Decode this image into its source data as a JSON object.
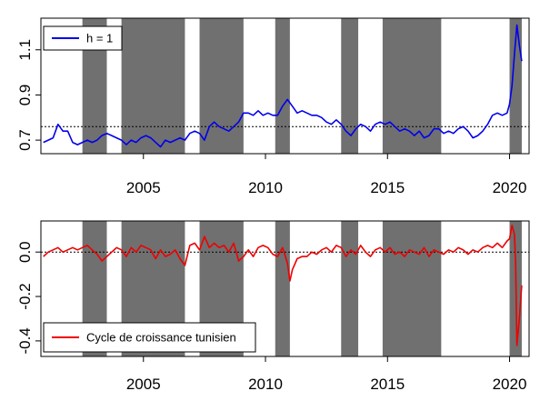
{
  "chart_data": [
    {
      "type": "line",
      "xlim": [
        2000.8,
        2020.8
      ],
      "ylim": [
        0.64,
        1.24
      ],
      "x_ticks": [
        {
          "value": 2005,
          "label": "2005"
        },
        {
          "value": 2010,
          "label": "2010"
        },
        {
          "value": 2015,
          "label": "2015"
        },
        {
          "value": 2020,
          "label": "2020"
        }
      ],
      "y_ticks": [
        {
          "value": 0.7,
          "label": "0.7"
        },
        {
          "value": 0.9,
          "label": "0.9"
        },
        {
          "value": 1.1,
          "label": "1.1"
        }
      ],
      "recession_bands": [
        [
          2002.5,
          2003.5
        ],
        [
          2004.1,
          2006.7
        ],
        [
          2007.3,
          2009.1
        ],
        [
          2010.4,
          2011.0
        ],
        [
          2013.1,
          2013.8
        ],
        [
          2014.8,
          2017.2
        ],
        [
          2020.0,
          2020.5
        ]
      ],
      "reference_line": {
        "y": 0.76,
        "style": "dotted"
      },
      "series": [
        {
          "name": "h = 1",
          "color": "#0000ee",
          "points": [
            [
              2000.9,
              0.69
            ],
            [
              2001.1,
              0.7
            ],
            [
              2001.3,
              0.71
            ],
            [
              2001.5,
              0.77
            ],
            [
              2001.7,
              0.74
            ],
            [
              2001.9,
              0.74
            ],
            [
              2002.1,
              0.69
            ],
            [
              2002.3,
              0.68
            ],
            [
              2002.5,
              0.69
            ],
            [
              2002.7,
              0.7
            ],
            [
              2002.9,
              0.69
            ],
            [
              2003.1,
              0.7
            ],
            [
              2003.3,
              0.72
            ],
            [
              2003.5,
              0.73
            ],
            [
              2003.7,
              0.72
            ],
            [
              2003.9,
              0.71
            ],
            [
              2004.1,
              0.7
            ],
            [
              2004.3,
              0.68
            ],
            [
              2004.5,
              0.7
            ],
            [
              2004.7,
              0.69
            ],
            [
              2004.9,
              0.71
            ],
            [
              2005.1,
              0.72
            ],
            [
              2005.3,
              0.71
            ],
            [
              2005.5,
              0.69
            ],
            [
              2005.7,
              0.67
            ],
            [
              2005.9,
              0.7
            ],
            [
              2006.1,
              0.69
            ],
            [
              2006.3,
              0.7
            ],
            [
              2006.5,
              0.71
            ],
            [
              2006.7,
              0.7
            ],
            [
              2006.9,
              0.73
            ],
            [
              2007.1,
              0.74
            ],
            [
              2007.3,
              0.73
            ],
            [
              2007.5,
              0.7
            ],
            [
              2007.7,
              0.76
            ],
            [
              2007.9,
              0.78
            ],
            [
              2008.1,
              0.76
            ],
            [
              2008.3,
              0.75
            ],
            [
              2008.5,
              0.74
            ],
            [
              2008.7,
              0.76
            ],
            [
              2008.9,
              0.78
            ],
            [
              2009.1,
              0.82
            ],
            [
              2009.3,
              0.82
            ],
            [
              2009.5,
              0.81
            ],
            [
              2009.7,
              0.83
            ],
            [
              2009.9,
              0.81
            ],
            [
              2010.1,
              0.82
            ],
            [
              2010.3,
              0.81
            ],
            [
              2010.5,
              0.81
            ],
            [
              2010.7,
              0.85
            ],
            [
              2010.9,
              0.88
            ],
            [
              2011.1,
              0.85
            ],
            [
              2011.3,
              0.82
            ],
            [
              2011.5,
              0.83
            ],
            [
              2011.7,
              0.82
            ],
            [
              2011.9,
              0.81
            ],
            [
              2012.1,
              0.81
            ],
            [
              2012.3,
              0.8
            ],
            [
              2012.5,
              0.78
            ],
            [
              2012.7,
              0.77
            ],
            [
              2012.9,
              0.79
            ],
            [
              2013.1,
              0.77
            ],
            [
              2013.3,
              0.74
            ],
            [
              2013.5,
              0.72
            ],
            [
              2013.7,
              0.75
            ],
            [
              2013.9,
              0.77
            ],
            [
              2014.1,
              0.76
            ],
            [
              2014.3,
              0.74
            ],
            [
              2014.5,
              0.77
            ],
            [
              2014.7,
              0.78
            ],
            [
              2014.9,
              0.77
            ],
            [
              2015.1,
              0.78
            ],
            [
              2015.3,
              0.76
            ],
            [
              2015.5,
              0.74
            ],
            [
              2015.7,
              0.75
            ],
            [
              2015.9,
              0.74
            ],
            [
              2016.1,
              0.72
            ],
            [
              2016.3,
              0.74
            ],
            [
              2016.5,
              0.71
            ],
            [
              2016.7,
              0.72
            ],
            [
              2016.9,
              0.75
            ],
            [
              2017.1,
              0.75
            ],
            [
              2017.3,
              0.73
            ],
            [
              2017.5,
              0.74
            ],
            [
              2017.7,
              0.73
            ],
            [
              2017.9,
              0.75
            ],
            [
              2018.1,
              0.76
            ],
            [
              2018.3,
              0.74
            ],
            [
              2018.5,
              0.71
            ],
            [
              2018.7,
              0.72
            ],
            [
              2018.9,
              0.74
            ],
            [
              2019.1,
              0.77
            ],
            [
              2019.3,
              0.81
            ],
            [
              2019.5,
              0.82
            ],
            [
              2019.7,
              0.81
            ],
            [
              2019.9,
              0.82
            ],
            [
              2020.0,
              0.86
            ],
            [
              2020.1,
              0.94
            ],
            [
              2020.2,
              1.08
            ],
            [
              2020.3,
              1.21
            ],
            [
              2020.4,
              1.12
            ],
            [
              2020.5,
              1.05
            ]
          ]
        }
      ]
    },
    {
      "type": "line",
      "xlim": [
        2000.8,
        2020.8
      ],
      "ylim": [
        -0.47,
        0.14
      ],
      "x_ticks": [
        {
          "value": 2005,
          "label": "2005"
        },
        {
          "value": 2010,
          "label": "2010"
        },
        {
          "value": 2015,
          "label": "2015"
        },
        {
          "value": 2020,
          "label": "2020"
        }
      ],
      "y_ticks": [
        {
          "value": -0.4,
          "label": "-0.4"
        },
        {
          "value": -0.2,
          "label": "-0.2"
        },
        {
          "value": 0.0,
          "label": "0.0"
        }
      ],
      "recession_bands": [
        [
          2002.5,
          2003.5
        ],
        [
          2004.1,
          2006.7
        ],
        [
          2007.3,
          2009.1
        ],
        [
          2010.4,
          2011.0
        ],
        [
          2013.1,
          2013.8
        ],
        [
          2014.8,
          2017.2
        ],
        [
          2020.0,
          2020.5
        ]
      ],
      "reference_line": {
        "y": 0.0,
        "style": "dotted"
      },
      "series": [
        {
          "name": "Cycle de croissance tunisien",
          "color": "#ee0000",
          "points": [
            [
              2000.9,
              -0.02
            ],
            [
              2001.1,
              0.0
            ],
            [
              2001.3,
              0.01
            ],
            [
              2001.5,
              0.02
            ],
            [
              2001.7,
              0.0
            ],
            [
              2001.9,
              0.01
            ],
            [
              2002.1,
              0.02
            ],
            [
              2002.3,
              0.01
            ],
            [
              2002.5,
              0.02
            ],
            [
              2002.7,
              0.03
            ],
            [
              2002.9,
              0.01
            ],
            [
              2003.1,
              -0.01
            ],
            [
              2003.3,
              -0.04
            ],
            [
              2003.5,
              -0.02
            ],
            [
              2003.7,
              0.0
            ],
            [
              2003.9,
              0.02
            ],
            [
              2004.1,
              0.01
            ],
            [
              2004.3,
              -0.02
            ],
            [
              2004.5,
              0.02
            ],
            [
              2004.7,
              0.0
            ],
            [
              2004.9,
              0.03
            ],
            [
              2005.1,
              0.02
            ],
            [
              2005.3,
              0.01
            ],
            [
              2005.5,
              -0.03
            ],
            [
              2005.7,
              0.01
            ],
            [
              2005.9,
              -0.02
            ],
            [
              2006.1,
              -0.01
            ],
            [
              2006.3,
              0.01
            ],
            [
              2006.5,
              -0.03
            ],
            [
              2006.7,
              -0.06
            ],
            [
              2006.9,
              0.03
            ],
            [
              2007.1,
              0.04
            ],
            [
              2007.3,
              0.01
            ],
            [
              2007.5,
              0.07
            ],
            [
              2007.7,
              0.02
            ],
            [
              2007.9,
              0.04
            ],
            [
              2008.1,
              0.02
            ],
            [
              2008.3,
              0.03
            ],
            [
              2008.5,
              0.0
            ],
            [
              2008.7,
              0.04
            ],
            [
              2008.9,
              -0.04
            ],
            [
              2009.1,
              -0.02
            ],
            [
              2009.3,
              0.01
            ],
            [
              2009.5,
              -0.02
            ],
            [
              2009.7,
              0.02
            ],
            [
              2009.9,
              0.03
            ],
            [
              2010.1,
              0.02
            ],
            [
              2010.3,
              -0.01
            ],
            [
              2010.5,
              -0.02
            ],
            [
              2010.7,
              0.02
            ],
            [
              2010.9,
              -0.05
            ],
            [
              2011.0,
              -0.13
            ],
            [
              2011.1,
              -0.08
            ],
            [
              2011.3,
              -0.03
            ],
            [
              2011.5,
              -0.02
            ],
            [
              2011.7,
              -0.02
            ],
            [
              2011.9,
              0.0
            ],
            [
              2012.1,
              -0.01
            ],
            [
              2012.3,
              0.01
            ],
            [
              2012.5,
              0.02
            ],
            [
              2012.7,
              0.0
            ],
            [
              2012.9,
              0.03
            ],
            [
              2013.1,
              0.02
            ],
            [
              2013.3,
              -0.02
            ],
            [
              2013.5,
              0.01
            ],
            [
              2013.7,
              -0.01
            ],
            [
              2013.9,
              0.03
            ],
            [
              2014.1,
              0.0
            ],
            [
              2014.3,
              -0.02
            ],
            [
              2014.5,
              0.01
            ],
            [
              2014.7,
              0.02
            ],
            [
              2014.9,
              0.0
            ],
            [
              2015.1,
              0.02
            ],
            [
              2015.3,
              -0.01
            ],
            [
              2015.5,
              0.0
            ],
            [
              2015.7,
              -0.02
            ],
            [
              2015.9,
              0.01
            ],
            [
              2016.1,
              0.0
            ],
            [
              2016.3,
              -0.01
            ],
            [
              2016.5,
              0.02
            ],
            [
              2016.7,
              -0.02
            ],
            [
              2016.9,
              0.01
            ],
            [
              2017.1,
              0.0
            ],
            [
              2017.3,
              -0.01
            ],
            [
              2017.5,
              0.01
            ],
            [
              2017.7,
              0.0
            ],
            [
              2017.9,
              0.02
            ],
            [
              2018.1,
              0.01
            ],
            [
              2018.3,
              -0.01
            ],
            [
              2018.5,
              0.01
            ],
            [
              2018.7,
              0.0
            ],
            [
              2018.9,
              0.02
            ],
            [
              2019.1,
              0.03
            ],
            [
              2019.3,
              0.02
            ],
            [
              2019.5,
              0.04
            ],
            [
              2019.7,
              0.02
            ],
            [
              2019.9,
              0.05
            ],
            [
              2020.0,
              0.06
            ],
            [
              2020.1,
              0.12
            ],
            [
              2020.2,
              0.08
            ],
            [
              2020.25,
              -0.05
            ],
            [
              2020.3,
              -0.42
            ],
            [
              2020.4,
              -0.3
            ],
            [
              2020.5,
              -0.15
            ]
          ]
        }
      ]
    }
  ],
  "colors": {
    "band": "#707070",
    "axis": "#000000"
  }
}
